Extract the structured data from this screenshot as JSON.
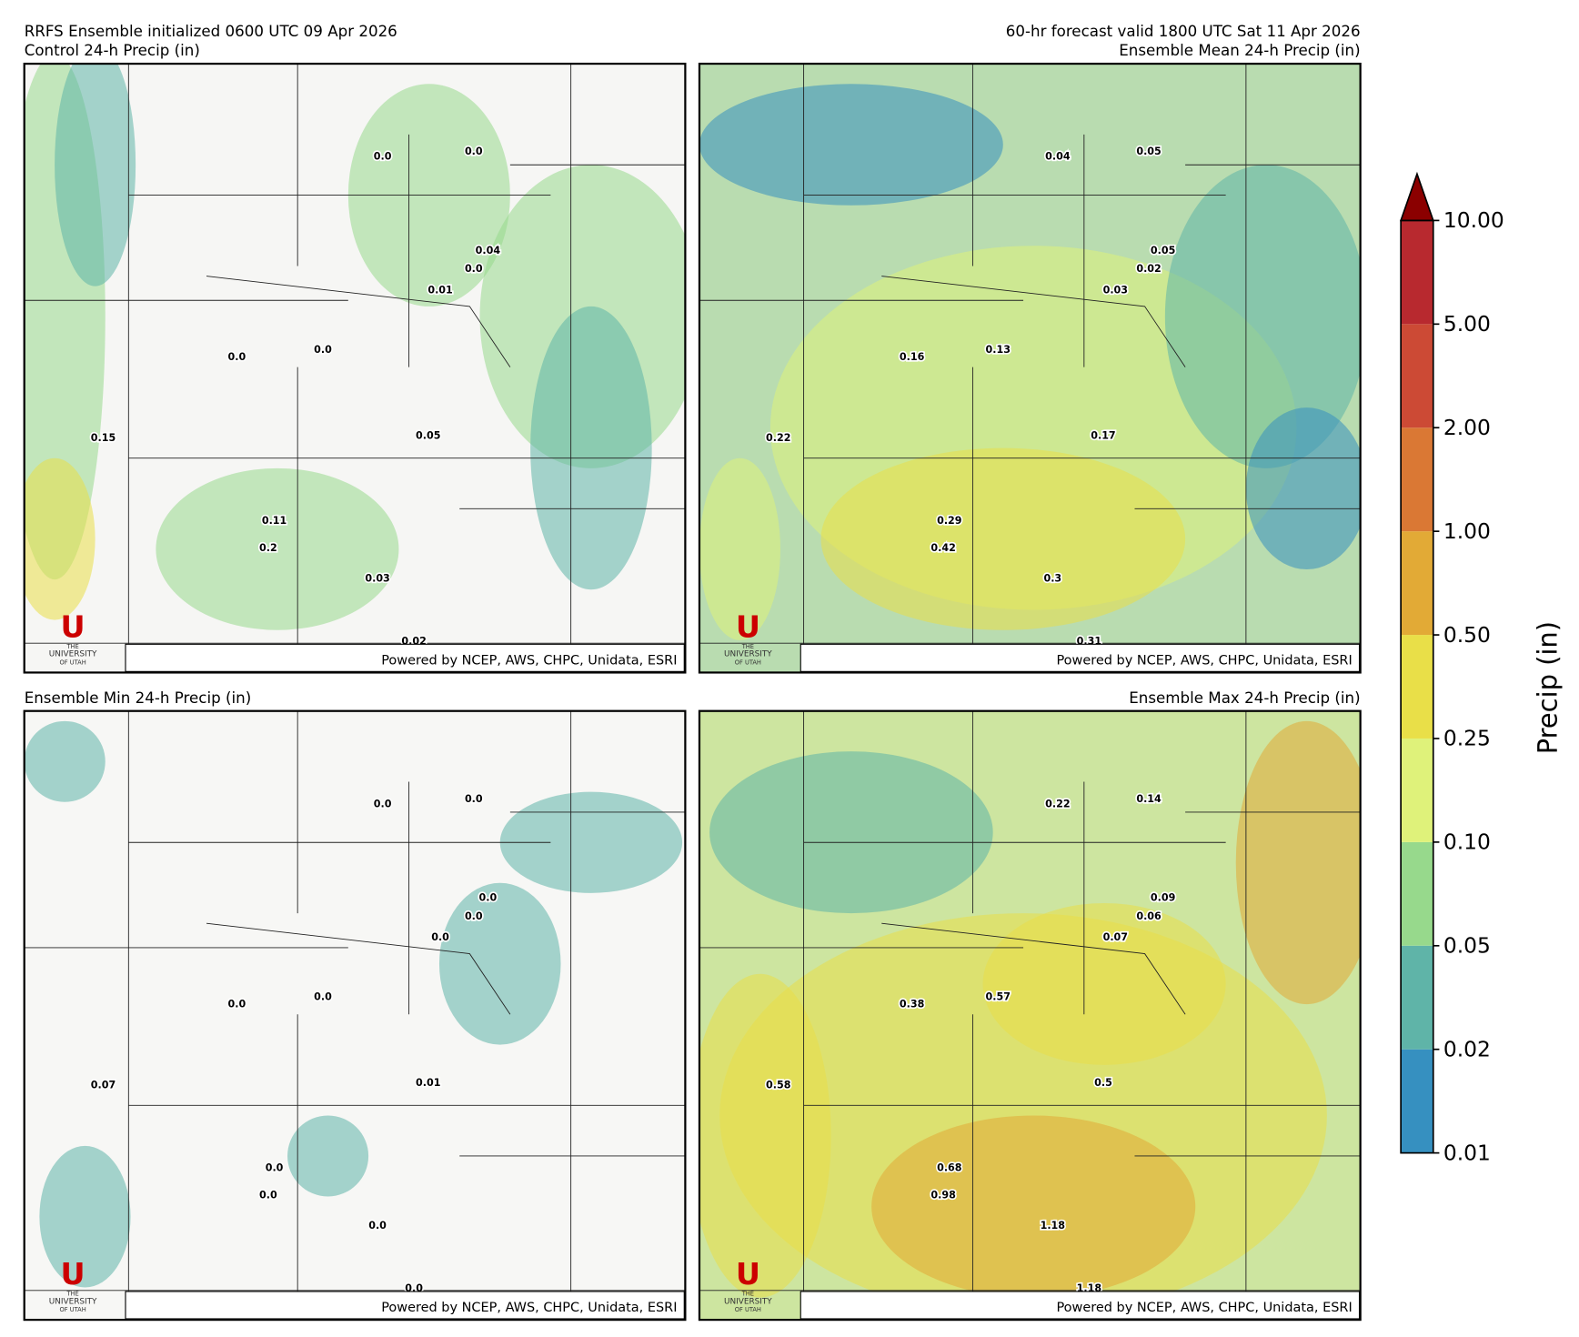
{
  "header": {
    "left_line1": "RRFS Ensemble initialized 0600 UTC 09 Apr 2026",
    "right_line1": "60-hr forecast valid 1800 UTC Sat 11 Apr 2026"
  },
  "panels": [
    {
      "title": "Control 24-h Precip (in)",
      "stations": [
        "0.0",
        "0.0",
        "0.04",
        "0.0",
        "0.01",
        "0.0",
        "0.0",
        "0.15",
        "0.05",
        "0.11",
        "0.2",
        "0.03",
        "0.02"
      ]
    },
    {
      "title": "Ensemble Mean 24-h Precip (in)",
      "stations": [
        "0.04",
        "0.05",
        "0.05",
        "0.02",
        "0.03",
        "0.16",
        "0.13",
        "0.22",
        "0.17",
        "0.29",
        "0.42",
        "0.3",
        "0.31"
      ]
    },
    {
      "title": "Ensemble Min 24-h Precip (in)",
      "stations": [
        "0.0",
        "0.0",
        "0.0",
        "0.0",
        "0.0",
        "0.0",
        "0.0",
        "0.07",
        "0.01",
        "0.0",
        "0.0",
        "0.0",
        "0.0"
      ]
    },
    {
      "title": "Ensemble Max 24-h Precip (in)",
      "stations": [
        "0.22",
        "0.14",
        "0.09",
        "0.06",
        "0.07",
        "0.38",
        "0.57",
        "0.58",
        "0.5",
        "0.68",
        "0.98",
        "1.18",
        "1.18"
      ]
    }
  ],
  "logo": {
    "letter": "U",
    "line1": "THE",
    "line2": "UNIVERSITY",
    "line3": "OF UTAH"
  },
  "credit": "Powered by NCEP, AWS, CHPC, Unidata, ESRI",
  "colorbar": {
    "label": "Precip (in)",
    "ticks": [
      "0.01",
      "0.02",
      "0.05",
      "0.10",
      "0.25",
      "0.50",
      "1.00",
      "2.00",
      "5.00",
      "10.00"
    ],
    "colors": [
      "#3690c0",
      "#5fb4a8",
      "#97d98c",
      "#dff27a",
      "#e9df48",
      "#e2aa36",
      "#da7834",
      "#cc4a35",
      "#b8292f"
    ],
    "extend_color": "#8b0000"
  }
}
